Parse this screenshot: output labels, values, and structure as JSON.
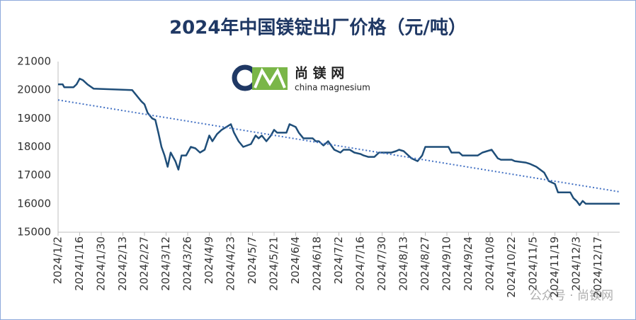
{
  "chart_data": {
    "type": "line",
    "title": "2024年中国镁锭出厂价格（元/吨）",
    "xlim": [
      "2024/1/2",
      "2024/12/31"
    ],
    "xticks": [
      "2024/1/2",
      "2024/1/16",
      "2024/1/30",
      "2024/2/13",
      "2024/2/27",
      "2024/3/12",
      "2024/3/26",
      "2024/4/9",
      "2024/4/23",
      "2024/5/7",
      "2024/5/21",
      "2024/6/4",
      "2024/6/18",
      "2024/7/2",
      "2024/7/16",
      "2024/7/30",
      "2024/8/13",
      "2024/8/27",
      "2024/9/10",
      "2024/9/24",
      "2024/10/8",
      "2024/10/22",
      "2024/11/5",
      "2024/11/19",
      "2024/12/3",
      "2024/12/17"
    ],
    "ylim": [
      15000,
      21000
    ],
    "yticks": [
      15000,
      16000,
      17000,
      18000,
      19000,
      20000,
      21000
    ],
    "grid": false,
    "x": [
      "2024/1/2",
      "2024/1/5",
      "2024/1/6",
      "2024/1/12",
      "2024/1/14",
      "2024/1/16",
      "2024/1/18",
      "2024/1/21",
      "2024/1/25",
      "2024/2/19",
      "2024/2/22",
      "2024/2/25",
      "2024/2/27",
      "2024/2/29",
      "2024/3/3",
      "2024/3/5",
      "2024/3/7",
      "2024/3/9",
      "2024/3/11",
      "2024/3/13",
      "2024/3/15",
      "2024/3/18",
      "2024/3/20",
      "2024/3/22",
      "2024/3/25",
      "2024/3/28",
      "2024/3/31",
      "2024/4/3",
      "2024/4/6",
      "2024/4/9",
      "2024/4/11",
      "2024/4/14",
      "2024/4/17",
      "2024/4/20",
      "2024/4/23",
      "2024/4/25",
      "2024/4/28",
      "2024/5/1",
      "2024/5/6",
      "2024/5/9",
      "2024/5/11",
      "2024/5/13",
      "2024/5/16",
      "2024/5/19",
      "2024/5/21",
      "2024/5/23",
      "2024/5/29",
      "2024/5/31",
      "2024/6/4",
      "2024/6/6",
      "2024/6/9",
      "2024/6/15",
      "2024/6/17",
      "2024/6/19",
      "2024/6/22",
      "2024/6/25",
      "2024/6/29",
      "2024/7/3",
      "2024/7/5",
      "2024/7/9",
      "2024/7/12",
      "2024/7/16",
      "2024/7/18",
      "2024/7/21",
      "2024/7/25",
      "2024/7/28",
      "2024/8/5",
      "2024/8/8",
      "2024/8/10",
      "2024/8/13",
      "2024/8/18",
      "2024/8/22",
      "2024/8/25",
      "2024/8/27",
      "2024/9/11",
      "2024/9/13",
      "2024/9/18",
      "2024/9/20",
      "2024/9/30",
      "2024/10/3",
      "2024/10/9",
      "2024/10/13",
      "2024/10/15",
      "2024/10/22",
      "2024/10/24",
      "2024/10/31",
      "2024/11/3",
      "2024/11/7",
      "2024/11/12",
      "2024/11/15",
      "2024/11/19",
      "2024/11/21",
      "2024/11/29",
      "2024/12/1",
      "2024/12/3",
      "2024/12/5",
      "2024/12/7",
      "2024/12/9",
      "2024/12/31"
    ],
    "series": [
      {
        "color": "#1f4e79",
        "values": [
          20200,
          20200,
          20100,
          20100,
          20200,
          20400,
          20350,
          20200,
          20050,
          20000,
          19800,
          19600,
          19500,
          19200,
          19000,
          18950,
          18500,
          18000,
          17700,
          17300,
          17800,
          17500,
          17200,
          17700,
          17700,
          18000,
          17950,
          17800,
          17900,
          18400,
          18200,
          18450,
          18600,
          18700,
          18800,
          18500,
          18200,
          18000,
          18100,
          18400,
          18300,
          18400,
          18200,
          18400,
          18600,
          18500,
          18500,
          18800,
          18700,
          18500,
          18300,
          18300,
          18200,
          18200,
          18050,
          18200,
          17900,
          17800,
          17900,
          17900,
          17800,
          17750,
          17700,
          17650,
          17650,
          17800,
          17800,
          17850,
          17900,
          17850,
          17600,
          17500,
          17700,
          18000,
          18000,
          17800,
          17800,
          17700,
          17700,
          17800,
          17900,
          17600,
          17550,
          17550,
          17500,
          17450,
          17400,
          17300,
          17100,
          16800,
          16700,
          16400,
          16400,
          16200,
          16100,
          15950,
          16100,
          16000,
          16000
        ]
      }
    ],
    "trendline": {
      "color": "#4472c4",
      "style": "dotted",
      "values": [
        19650,
        16420
      ]
    },
    "logo": {
      "name": "尚 镁 网",
      "subtitle": "china magnesium"
    },
    "watermark": "公众号 · 尚镁网"
  }
}
